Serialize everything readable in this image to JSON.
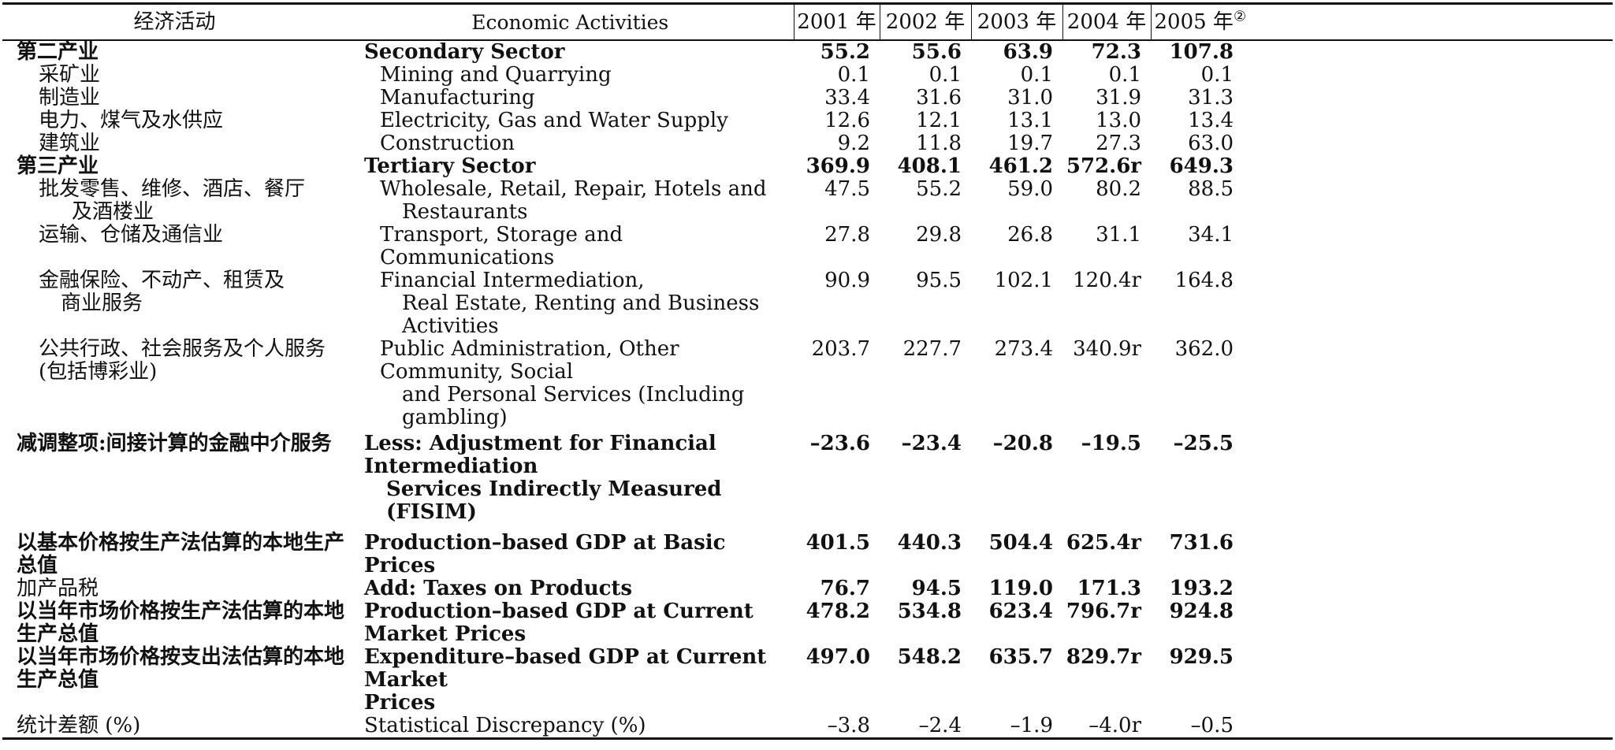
{
  "header": {
    "cn_activity": "经济活动",
    "en_activity": "Economic Activities",
    "years": [
      "2001 年",
      "2002 年",
      "2003 年",
      "2004 年",
      "2005 年"
    ],
    "year_2005_note": "②"
  },
  "rows": [
    {
      "cn": "第二产业",
      "en": "Secondary Sector",
      "v": [
        "55.2",
        "55.6",
        "63.9",
        "72.3",
        "107.8"
      ]
    },
    {
      "cn": "采矿业",
      "en": "Mining and Quarrying",
      "v": [
        "0.1",
        "0.1",
        "0.1",
        "0.1",
        "0.1"
      ]
    },
    {
      "cn": "制造业",
      "en": "Manufacturing",
      "v": [
        "33.4",
        "31.6",
        "31.0",
        "31.9",
        "31.3"
      ]
    },
    {
      "cn": "电力、煤气及水供应",
      "en": "Electricity, Gas and Water Supply",
      "v": [
        "12.6",
        "12.1",
        "13.1",
        "13.0",
        "13.4"
      ]
    },
    {
      "cn": "建筑业",
      "en": "Construction",
      "v": [
        "9.2",
        "11.8",
        "19.7",
        "27.3",
        "63.0"
      ]
    },
    {
      "cn": "第三产业",
      "en": "Tertiary Sector",
      "v": [
        "369.9",
        "408.1",
        "461.2",
        "572.6r",
        "649.3"
      ]
    },
    {
      "cn1": "批发零售、维修、酒店、餐厅",
      "cn2": "及酒楼业",
      "en1": "Wholesale, Retail, Repair, Hotels and",
      "en2": "Restaurants",
      "v": [
        "47.5",
        "55.2",
        "59.0",
        "80.2",
        "88.5"
      ]
    },
    {
      "cn": "运输、仓储及通信业",
      "en": "Transport, Storage and Communications",
      "v": [
        "27.8",
        "29.8",
        "26.8",
        "31.1",
        "34.1"
      ]
    },
    {
      "cn1": "金融保险、不动产、租赁及",
      "cn2": "商业服务",
      "en1": "Financial Intermediation,",
      "en2": "Real Estate, Renting and Business Activities",
      "v": [
        "90.9",
        "95.5",
        "102.1",
        "120.4r",
        "164.8"
      ]
    },
    {
      "cn1": "公共行政、社会服务及个人服务",
      "cn2": "(包括博彩业)",
      "en1": "Public Administration, Other Community, Social",
      "en2": "and Personal Services (Including gambling)",
      "v": [
        "203.7",
        "227.7",
        "273.4",
        "340.9r",
        "362.0"
      ]
    },
    {
      "cn": "减调整项:间接计算的金融中介服务",
      "en1": "Less: Adjustment for Financial Intermediation",
      "en2": "Services Indirectly Measured (FISIM)",
      "v": [
        "–23.6",
        "–23.4",
        "–20.8",
        "–19.5",
        "–25.5"
      ]
    },
    {
      "cn1": "以基本价格按生产法估算的本地生产",
      "cn2": "总值",
      "en": "Production–based GDP at Basic Prices",
      "v": [
        "401.5",
        "440.3",
        "504.4",
        "625.4r",
        "731.6"
      ]
    },
    {
      "cn": "加产品税",
      "en": "Add: Taxes on Products",
      "v": [
        "76.7",
        "94.5",
        "119.0",
        "171.3",
        "193.2"
      ]
    },
    {
      "cn1": "以当年市场价格按生产法估算的本地",
      "cn2": "生产总值",
      "en": "Production–based GDP at Current Market Prices",
      "v": [
        "478.2",
        "534.8",
        "623.4",
        "796.7r",
        "924.8"
      ]
    },
    {
      "cn1": "以当年市场价格按支出法估算的本地",
      "cn2": "生产总值",
      "en1": "Expenditure–based GDP at Current Market",
      "en2": "Prices",
      "v": [
        "497.0",
        "548.2",
        "635.7",
        "829.7r",
        "929.5"
      ]
    },
    {
      "cn": "统计差额 (%)",
      "en": "Statistical Discrepancy (%)",
      "v": [
        "–3.8",
        "–2.4",
        "–1.9",
        "–4.0r",
        "–0.5"
      ]
    }
  ]
}
